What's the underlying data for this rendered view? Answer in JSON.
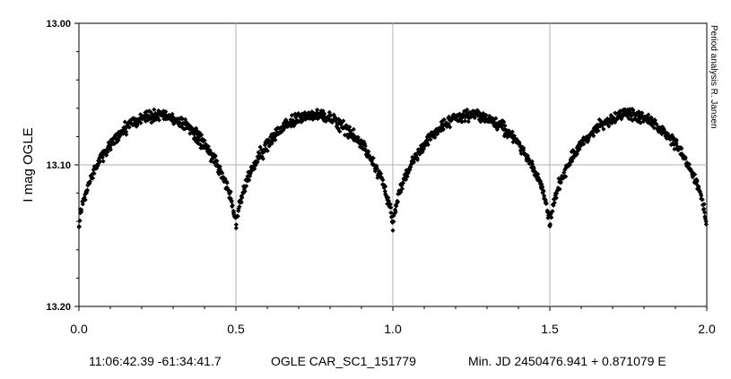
{
  "chart_data": {
    "type": "scatter",
    "ylabel": "I mag OGLE",
    "side_note": "Period analysis  R. Jansen",
    "xlim": [
      0.0,
      2.0
    ],
    "ylim": [
      13.0,
      13.2
    ],
    "y_inverted": true,
    "x_ticks": [
      "0.0",
      "0.5",
      "1.0",
      "1.5",
      "2.0"
    ],
    "y_ticks": [
      "13.00",
      "13.10",
      "13.20"
    ],
    "grid": true,
    "marker": "diamond",
    "marker_color": "#000000",
    "footer": {
      "coords": "11:06:42.39 -61:34:41.7",
      "star_id": "OGLE CAR_SC1_151779",
      "ephemeris": "Min. JD 2450476.941 + 0.871079 E"
    },
    "light_curve_shape": {
      "period_phase": 1.0,
      "minima_phase": [
        0.0,
        0.5,
        1.0,
        1.5,
        2.0
      ],
      "minimum_mag": 13.147,
      "maximum_mag": 13.065,
      "scatter_mag": 0.004
    }
  }
}
